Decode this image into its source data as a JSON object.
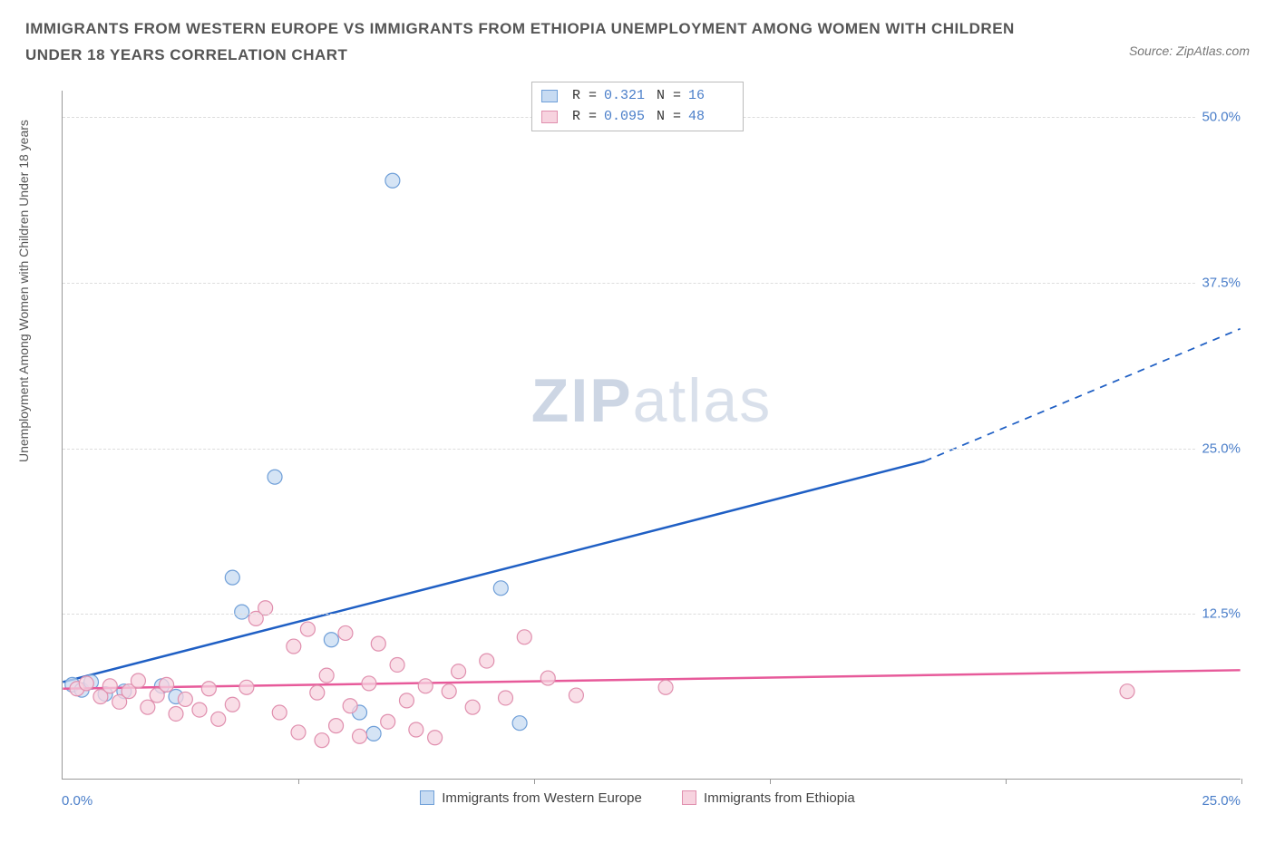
{
  "header": {
    "title": "IMMIGRANTS FROM WESTERN EUROPE VS IMMIGRANTS FROM ETHIOPIA UNEMPLOYMENT AMONG WOMEN WITH CHILDREN UNDER 18 YEARS CORRELATION CHART",
    "source_prefix": "Source: ",
    "source_name": "ZipAtlas.com"
  },
  "chart": {
    "type": "scatter-with-regression",
    "y_axis_label": "Unemployment Among Women with Children Under 18 years",
    "x_origin": "0.0%",
    "x_max": "25.0%",
    "xlim": [
      0,
      25
    ],
    "ylim": [
      0,
      52
    ],
    "xtick_positions": [
      5,
      10,
      15,
      20,
      25
    ],
    "y_gridlines": [
      {
        "value": 12.5,
        "label": "12.5%"
      },
      {
        "value": 25.0,
        "label": "25.0%"
      },
      {
        "value": 37.5,
        "label": "37.5%"
      },
      {
        "value": 50.0,
        "label": "50.0%"
      }
    ],
    "background_color": "#ffffff",
    "grid_color": "#dddddd",
    "axis_color": "#999999",
    "marker_radius": 8,
    "marker_stroke_width": 1.2,
    "line_width": 2.5,
    "watermark": "ZIPatlas",
    "series": [
      {
        "key": "western_europe",
        "label": "Immigrants from Western Europe",
        "fill": "#c7dbf2",
        "stroke": "#6f9fd8",
        "line_color": "#1f5fc4",
        "r_label": "R =",
        "r_value": "0.321",
        "n_label": "N =",
        "n_value": "16",
        "regression": {
          "x1": 0,
          "y1": 7.3,
          "x2": 18.3,
          "y2": 24.0,
          "x3": 25,
          "y3": 34.0
        },
        "points": [
          {
            "x": 0.2,
            "y": 7.1
          },
          {
            "x": 0.4,
            "y": 6.7
          },
          {
            "x": 0.6,
            "y": 7.3
          },
          {
            "x": 1.3,
            "y": 6.6
          },
          {
            "x": 2.1,
            "y": 7.0
          },
          {
            "x": 2.4,
            "y": 6.2
          },
          {
            "x": 3.6,
            "y": 15.2
          },
          {
            "x": 3.8,
            "y": 12.6
          },
          {
            "x": 4.5,
            "y": 22.8
          },
          {
            "x": 5.7,
            "y": 10.5
          },
          {
            "x": 6.3,
            "y": 5.0
          },
          {
            "x": 6.6,
            "y": 3.4
          },
          {
            "x": 7.0,
            "y": 45.2
          },
          {
            "x": 9.3,
            "y": 14.4
          },
          {
            "x": 9.7,
            "y": 4.2
          },
          {
            "x": 0.9,
            "y": 6.4
          }
        ]
      },
      {
        "key": "ethiopia",
        "label": "Immigrants from Ethiopia",
        "fill": "#f7d3df",
        "stroke": "#e08fae",
        "line_color": "#e75a9a",
        "r_label": "R =",
        "r_value": "0.095",
        "n_label": "N =",
        "n_value": "48",
        "regression": {
          "x1": 0,
          "y1": 6.8,
          "x2": 25,
          "y2": 8.2,
          "x3": 25,
          "y3": 8.2
        },
        "points": [
          {
            "x": 0.3,
            "y": 6.8
          },
          {
            "x": 0.5,
            "y": 7.2
          },
          {
            "x": 0.8,
            "y": 6.2
          },
          {
            "x": 1.0,
            "y": 7.0
          },
          {
            "x": 1.2,
            "y": 5.8
          },
          {
            "x": 1.4,
            "y": 6.6
          },
          {
            "x": 1.6,
            "y": 7.4
          },
          {
            "x": 1.8,
            "y": 5.4
          },
          {
            "x": 2.0,
            "y": 6.3
          },
          {
            "x": 2.2,
            "y": 7.1
          },
          {
            "x": 2.4,
            "y": 4.9
          },
          {
            "x": 2.6,
            "y": 6.0
          },
          {
            "x": 2.9,
            "y": 5.2
          },
          {
            "x": 3.1,
            "y": 6.8
          },
          {
            "x": 3.3,
            "y": 4.5
          },
          {
            "x": 3.6,
            "y": 5.6
          },
          {
            "x": 3.9,
            "y": 6.9
          },
          {
            "x": 4.1,
            "y": 12.1
          },
          {
            "x": 4.3,
            "y": 12.9
          },
          {
            "x": 4.6,
            "y": 5.0
          },
          {
            "x": 4.9,
            "y": 10.0
          },
          {
            "x": 5.0,
            "y": 3.5
          },
          {
            "x": 5.2,
            "y": 11.3
          },
          {
            "x": 5.4,
            "y": 6.5
          },
          {
            "x": 5.5,
            "y": 2.9
          },
          {
            "x": 5.8,
            "y": 4.0
          },
          {
            "x": 6.0,
            "y": 11.0
          },
          {
            "x": 6.1,
            "y": 5.5
          },
          {
            "x": 6.3,
            "y": 3.2
          },
          {
            "x": 6.5,
            "y": 7.2
          },
          {
            "x": 6.7,
            "y": 10.2
          },
          {
            "x": 6.9,
            "y": 4.3
          },
          {
            "x": 7.1,
            "y": 8.6
          },
          {
            "x": 7.3,
            "y": 5.9
          },
          {
            "x": 7.5,
            "y": 3.7
          },
          {
            "x": 7.7,
            "y": 7.0
          },
          {
            "x": 7.9,
            "y": 3.1
          },
          {
            "x": 8.2,
            "y": 6.6
          },
          {
            "x": 8.4,
            "y": 8.1
          },
          {
            "x": 8.7,
            "y": 5.4
          },
          {
            "x": 9.0,
            "y": 8.9
          },
          {
            "x": 9.4,
            "y": 6.1
          },
          {
            "x": 9.8,
            "y": 10.7
          },
          {
            "x": 10.3,
            "y": 7.6
          },
          {
            "x": 10.9,
            "y": 6.3
          },
          {
            "x": 12.8,
            "y": 6.9
          },
          {
            "x": 22.6,
            "y": 6.6
          },
          {
            "x": 5.6,
            "y": 7.8
          }
        ]
      }
    ]
  }
}
